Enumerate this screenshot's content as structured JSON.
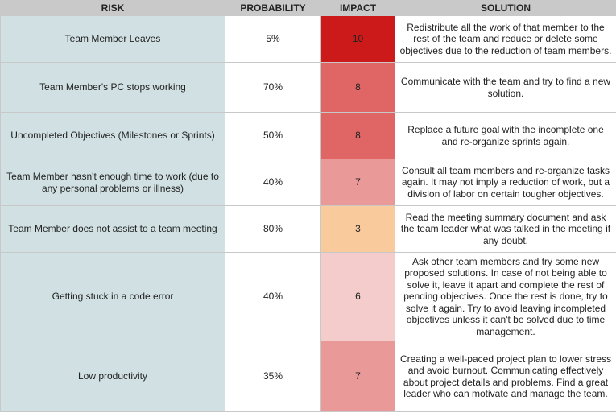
{
  "headers": [
    "RISK",
    "PROBABILITY",
    "IMPACT",
    "SOLUTION"
  ],
  "rows": [
    {
      "risk": "Team Member Leaves",
      "probability": "5%",
      "impact": "10",
      "impact_color": "#cc1a1a",
      "solution": "Redistribute all the work of that member to the rest of the team and reduce or delete some objectives due to the reduction of team members."
    },
    {
      "risk": "Team Member's PC stops working",
      "probability": "70%",
      "impact": "8",
      "impact_color": "#e06666",
      "solution": "Communicate with the team and try to find a new solution."
    },
    {
      "risk": "Uncompleted Objectives (Milestones or Sprints)",
      "probability": "50%",
      "impact": "8",
      "impact_color": "#e06666",
      "solution": "Replace a future goal with the incomplete one and re-organize sprints again."
    },
    {
      "risk": "Team Member hasn't enough time to work (due to any personal problems or illness)",
      "probability": "40%",
      "impact": "7",
      "impact_color": "#ea9999",
      "solution": "Consult all team members and re-organize tasks again. It may not imply a reduction of work, but a division of labor on certain tougher objectives."
    },
    {
      "risk": "Team Member does not assist to a team meeting",
      "probability": "80%",
      "impact": "3",
      "impact_color": "#f9cb9c",
      "solution": "Read the meeting summary document and ask the team leader what was talked in the meeting if any doubt."
    },
    {
      "risk": "Getting stuck in a code error",
      "probability": "40%",
      "impact": "6",
      "impact_color": "#f4cccc",
      "solution": "Ask other team members and try some new proposed solutions. In case of not being able to solve it, leave it apart and complete the rest of pending objectives. Once the rest is done, try to solve it again. Try to avoid leaving incompleted objectives unless it can't be solved due to time management."
    },
    {
      "risk": "Low productivity",
      "probability": "35%",
      "impact": "7",
      "impact_color": "#ea9999",
      "solution": "Creating a well-paced project plan to lower stress and avoid burnout. Communicating effectively about project details and problems. Find a great leader who can motivate and manage the team."
    }
  ]
}
